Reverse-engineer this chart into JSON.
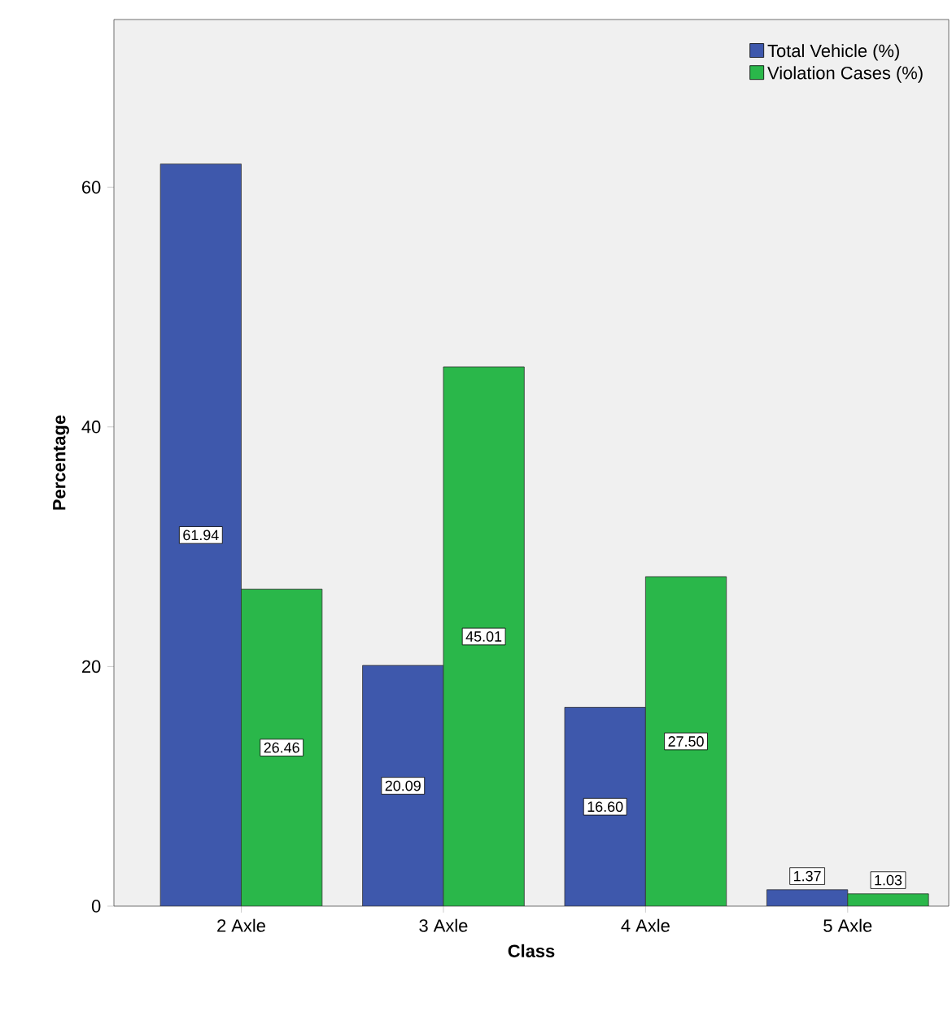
{
  "chart_data": {
    "type": "bar",
    "xlabel": "Class",
    "ylabel": "Percentage",
    "categories": [
      "2 Axle",
      "3 Axle",
      "4 Axle",
      "5 Axle"
    ],
    "series": [
      {
        "name": "Total Vehicle (%)",
        "color": "#3e58ac",
        "values": [
          61.94,
          20.09,
          16.6,
          1.37
        ],
        "value_labels": [
          "61.94",
          "20.09",
          "16.60",
          "1.37"
        ]
      },
      {
        "name": "Violation Cases (%)",
        "color": "#2ab74a",
        "values": [
          26.46,
          45.01,
          27.5,
          1.03
        ],
        "value_labels": [
          "26.46",
          "45.01",
          "27.50",
          "1.03"
        ]
      }
    ],
    "ylim": [
      0,
      74
    ],
    "yticks": [
      0,
      20,
      40,
      60
    ],
    "grid": false,
    "legend": "top right"
  }
}
